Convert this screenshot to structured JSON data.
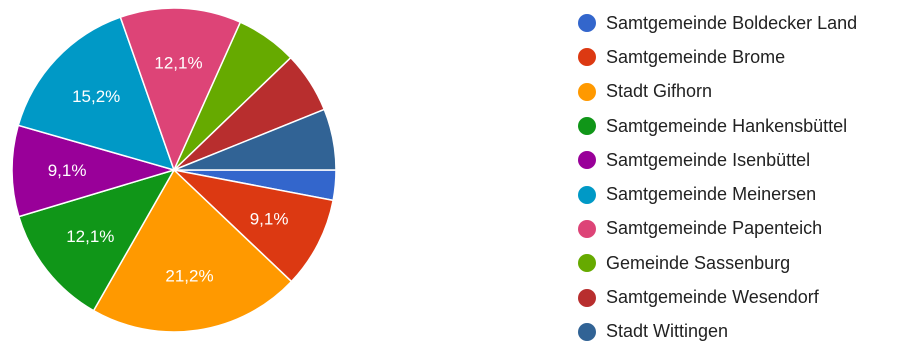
{
  "chart_data": {
    "type": "pie",
    "legend_position": "right",
    "slices": [
      {
        "name": "Samtgemeinde Boldecker Land",
        "value": 3.0,
        "label": "",
        "color": "#3366cc"
      },
      {
        "name": "Samtgemeinde Brome",
        "value": 9.1,
        "label": "9,1%",
        "color": "#dc3912"
      },
      {
        "name": "Stadt Gifhorn",
        "value": 21.2,
        "label": "21,2%",
        "color": "#ff9900"
      },
      {
        "name": "Samtgemeinde Hankensbüttel",
        "value": 12.1,
        "label": "12,1%",
        "color": "#109618"
      },
      {
        "name": "Samtgemeinde Isenbüttel",
        "value": 9.1,
        "label": "9,1%",
        "color": "#990099"
      },
      {
        "name": "Samtgemeinde Meinersen",
        "value": 15.2,
        "label": "15,2%",
        "color": "#0099c6"
      },
      {
        "name": "Samtgemeinde Papenteich",
        "value": 12.1,
        "label": "12,1%",
        "color": "#dd4477"
      },
      {
        "name": "Gemeinde Sassenburg",
        "value": 6.1,
        "label": "",
        "color": "#66aa00"
      },
      {
        "name": "Samtgemeinde Wesendorf",
        "value": 6.1,
        "label": "",
        "color": "#b82e2e"
      },
      {
        "name": "Stadt Wittingen",
        "value": 6.1,
        "label": "",
        "color": "#316395"
      }
    ]
  }
}
